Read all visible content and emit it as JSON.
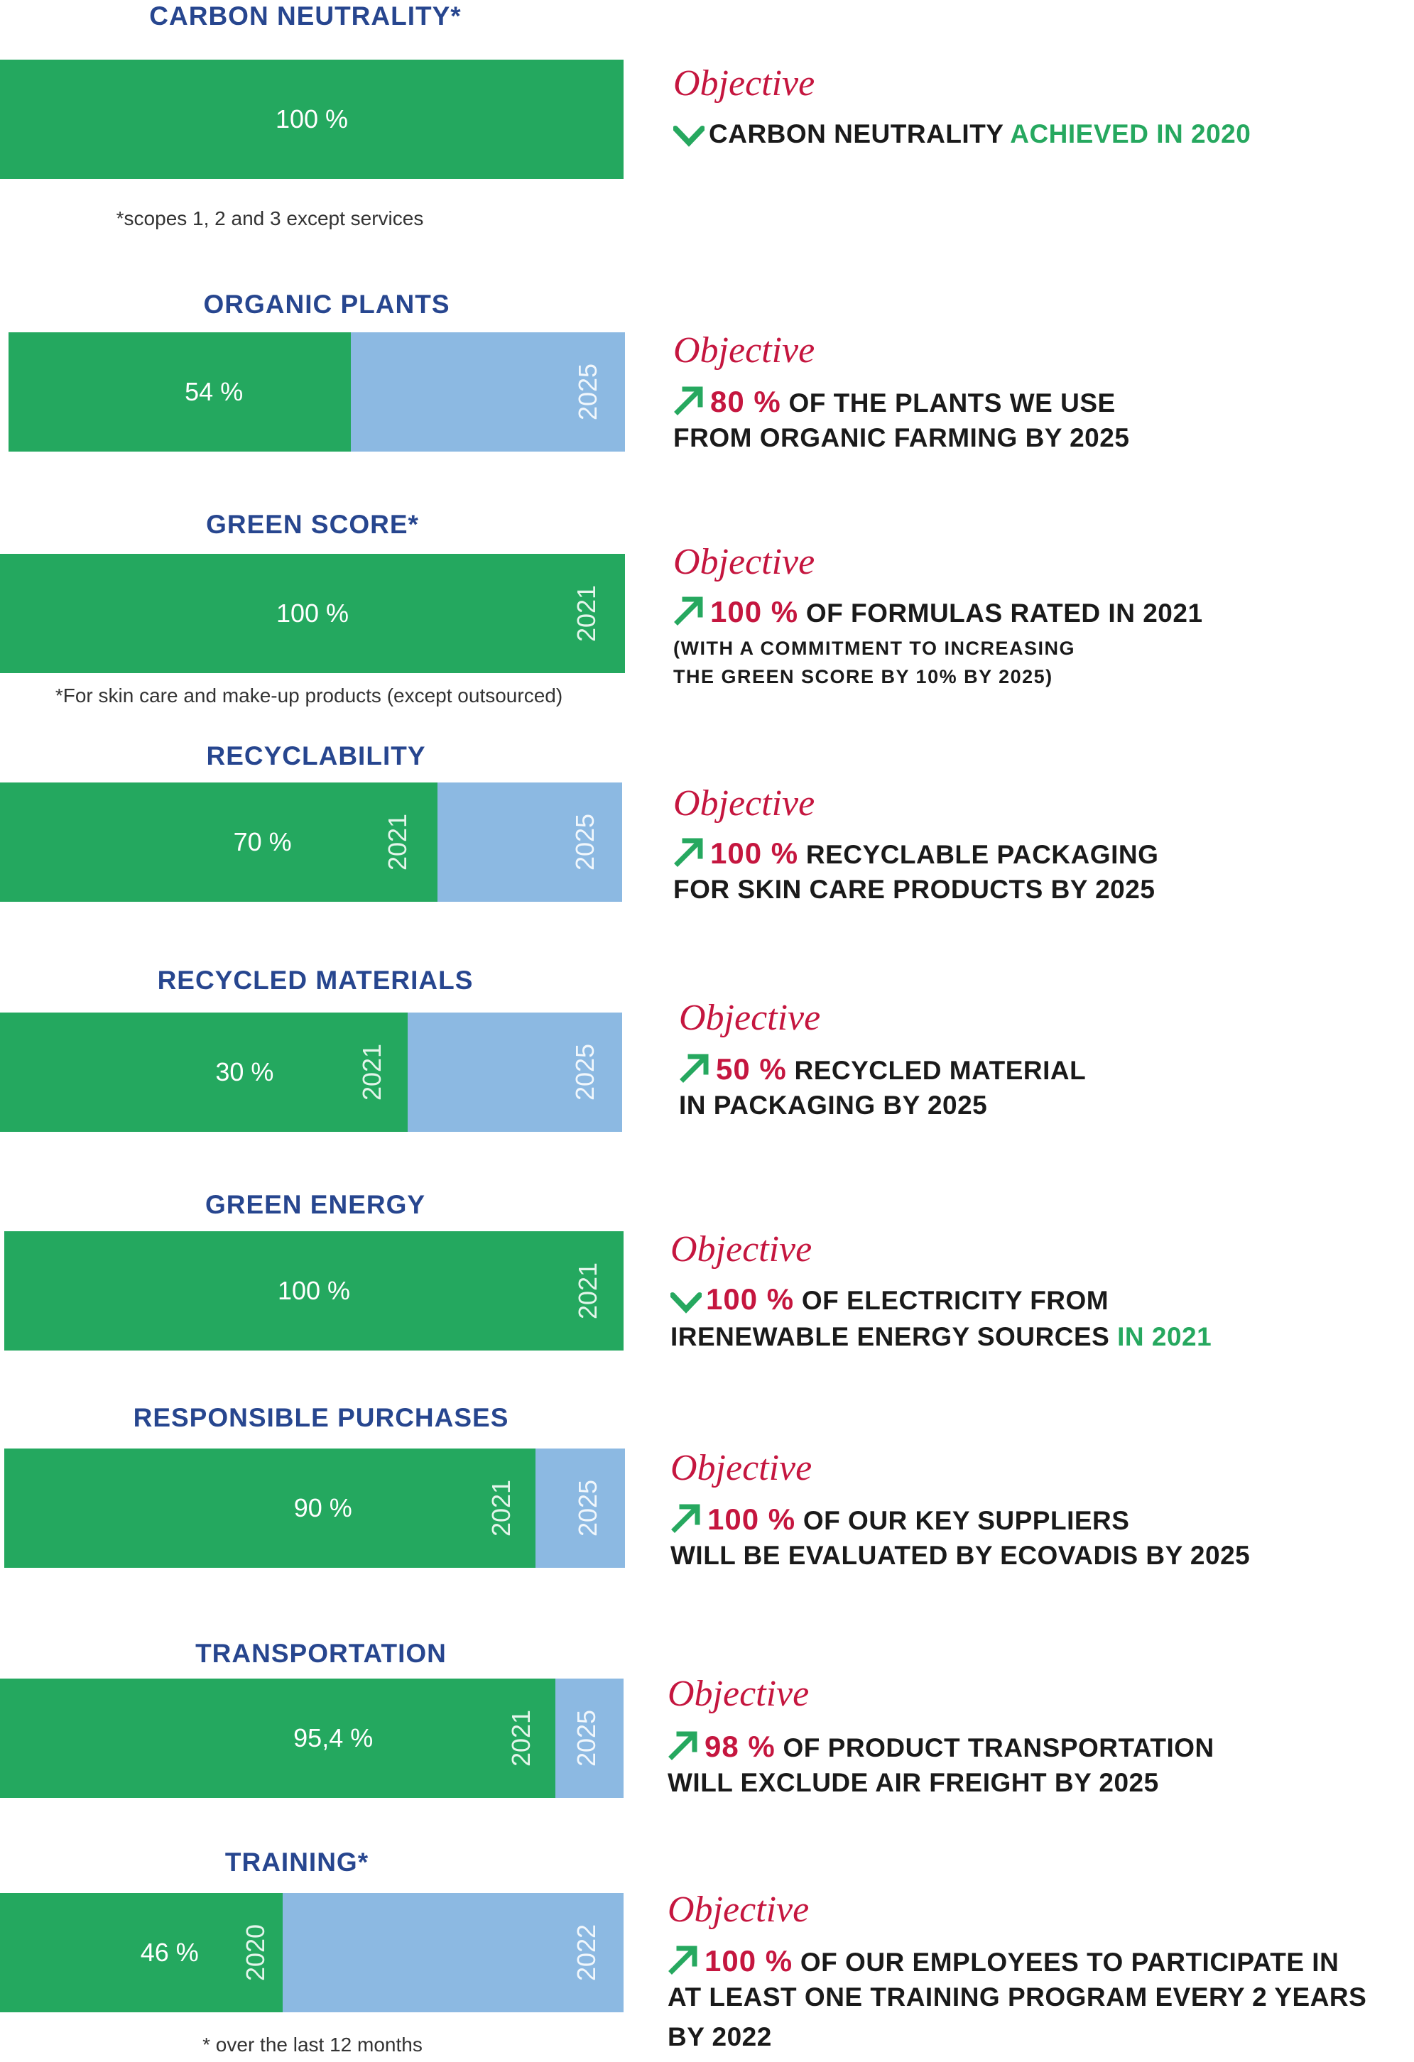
{
  "colors": {
    "bar_green": "#24a85f",
    "bar_blue": "#8cb9e2",
    "title_blue": "#27468f",
    "objective_red": "#c5163f",
    "achieved_green": "#26a85f"
  },
  "objective_label": "Objective",
  "chart_data": [
    {
      "type": "bar",
      "title": "CARBON NEUTRALITY*",
      "value_label": "100 %",
      "value": 100,
      "target": null,
      "target_year": null,
      "current_year": null,
      "footnote": "*scopes 1, 2 and 3 except services",
      "objective": {
        "icon": "check-icon",
        "lines": [
          [
            {
              "t": "CARBON NEUTRALITY "
            },
            {
              "t": "ACHIEVED IN 2020",
              "s": "ok"
            }
          ]
        ],
        "small_lines": []
      }
    },
    {
      "type": "bar",
      "title": "ORGANIC PLANTS",
      "value_label": "54 %",
      "value": 54,
      "target": 80,
      "target_year": "2025",
      "current_year": null,
      "footnote": "",
      "objective": {
        "icon": "arrow-up-right-icon",
        "lines": [
          [
            {
              "t": "80 %",
              "s": "hl"
            },
            {
              "t": " OF THE PLANTS WE USE"
            }
          ],
          [
            {
              "t": "FROM ORGANIC FARMING BY 2025"
            }
          ]
        ],
        "small_lines": []
      }
    },
    {
      "type": "bar",
      "title": "GREEN SCORE*",
      "value_label": "100 %",
      "value": 100,
      "target": 100,
      "target_year": null,
      "current_year": "2021",
      "footnote": "*For skin care and make-up products (except outsourced)",
      "objective": {
        "icon": "arrow-up-right-icon",
        "lines": [
          [
            {
              "t": "100 %",
              "s": "hl"
            },
            {
              "t": " OF FORMULAS RATED IN 2021"
            }
          ]
        ],
        "small_lines": [
          "(WITH A COMMITMENT TO INCREASING",
          "THE GREEN SCORE BY 10% BY 2025)"
        ]
      }
    },
    {
      "type": "bar",
      "title": "RECYCLABILITY",
      "value_label": "70 %",
      "value": 70,
      "target": 100,
      "target_year": "2025",
      "current_year": "2021",
      "footnote": "",
      "objective": {
        "icon": "arrow-up-right-icon",
        "lines": [
          [
            {
              "t": "100 %",
              "s": "hl"
            },
            {
              "t": " RECYCLABLE PACKAGING"
            }
          ],
          [
            {
              "t": "FOR SKIN CARE PRODUCTS BY 2025"
            }
          ]
        ],
        "small_lines": []
      }
    },
    {
      "type": "bar",
      "title": "RECYCLED MATERIALS",
      "value_label": "30 %",
      "value": 30,
      "target": 50,
      "target_year": "2025",
      "current_year": "2021",
      "footnote": "",
      "objective": {
        "icon": "arrow-up-right-icon",
        "lines": [
          [
            {
              "t": "50 %",
              "s": "hl"
            },
            {
              "t": " RECYCLED MATERIAL"
            }
          ],
          [
            {
              "t": "IN PACKAGING BY 2025"
            }
          ]
        ],
        "small_lines": []
      }
    },
    {
      "type": "bar",
      "title": "GREEN ENERGY",
      "value_label": "100 %",
      "value": 100,
      "target": 100,
      "target_year": null,
      "current_year": "2021",
      "footnote": "",
      "objective": {
        "icon": "check-icon",
        "lines": [
          [
            {
              "t": "100 %",
              "s": "hl"
            },
            {
              "t": " OF ELECTRICITY FROM"
            }
          ],
          [
            {
              "t": "IRENEWABLE ENERGY SOURCES "
            },
            {
              "t": "IN 2021",
              "s": "ok"
            }
          ]
        ],
        "small_lines": []
      }
    },
    {
      "type": "bar",
      "title": "RESPONSIBLE PURCHASES",
      "value_label": "90 %",
      "value": 90,
      "target": 100,
      "target_year": "2025",
      "current_year": "2021",
      "footnote": "",
      "objective": {
        "icon": "arrow-up-right-icon",
        "lines": [
          [
            {
              "t": "100 %",
              "s": "hl"
            },
            {
              "t": " OF OUR KEY SUPPLIERS"
            }
          ],
          [
            {
              "t": "WILL BE EVALUATED BY ECOVADIS BY 2025"
            }
          ]
        ],
        "small_lines": []
      }
    },
    {
      "type": "bar",
      "title": "TRANSPORTATION",
      "value_label": "95,4 %",
      "value": 95.4,
      "target": 98,
      "target_year": "2025",
      "current_year": "2021",
      "footnote": "",
      "objective": {
        "icon": "arrow-up-right-icon",
        "lines": [
          [
            {
              "t": "98 %",
              "s": "hl"
            },
            {
              "t": " OF PRODUCT TRANSPORTATION"
            }
          ],
          [
            {
              "t": "WILL EXCLUDE AIR FREIGHT BY 2025"
            }
          ]
        ],
        "small_lines": []
      }
    },
    {
      "type": "bar",
      "title": "TRAINING*",
      "value_label": "46 %",
      "value": 46,
      "target": 100,
      "target_year": "2022",
      "current_year": "2020",
      "footnote": "* over the last 12 months",
      "objective": {
        "icon": "arrow-up-right-icon",
        "lines": [
          [
            {
              "t": "100 %",
              "s": "hl"
            },
            {
              "t": " OF OUR EMPLOYEES TO PARTICIPATE IN"
            }
          ],
          [
            {
              "t": "AT LEAST ONE TRAINING PROGRAM EVERY 2 YEARS"
            }
          ],
          [
            {
              "t": "BY 2022"
            }
          ]
        ],
        "small_lines": []
      }
    }
  ]
}
